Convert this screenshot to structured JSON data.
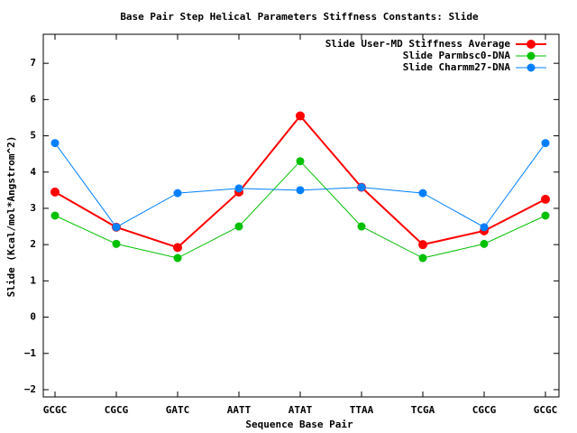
{
  "chart_data": {
    "type": "line",
    "title": "Base Pair Step Helical Parameters Stiffness Constants: Slide",
    "xlabel": "Sequence Base Pair",
    "ylabel": "Slide (Kcal/mol*Angstrom^2)",
    "categories": [
      "GCGC",
      "CGCG",
      "GATC",
      "AATT",
      "ATAT",
      "TTAA",
      "TCGA",
      "CGCG",
      "GCGC"
    ],
    "ylim": [
      -2.2,
      7.8
    ],
    "yticks": [
      "-2",
      "-1",
      "0",
      "1",
      "2",
      "3",
      "4",
      "5",
      "6",
      "7"
    ],
    "grid": false,
    "legend_position": "top-right",
    "series": [
      {
        "name": "Slide User-MD Stiffness Average",
        "color": "#ff0000",
        "values": [
          3.45,
          2.48,
          1.92,
          3.45,
          5.55,
          3.58,
          2.0,
          2.38,
          3.25
        ]
      },
      {
        "name": "Slide Parmbsc0-DNA",
        "color": "#00c000",
        "values": [
          2.8,
          2.02,
          1.63,
          2.5,
          4.3,
          2.5,
          1.63,
          2.02,
          2.8
        ]
      },
      {
        "name": "Slide Charmm27-DNA",
        "color": "#0080ff",
        "values": [
          4.8,
          2.48,
          3.42,
          3.55,
          3.5,
          3.58,
          3.42,
          2.48,
          4.8
        ]
      }
    ]
  }
}
